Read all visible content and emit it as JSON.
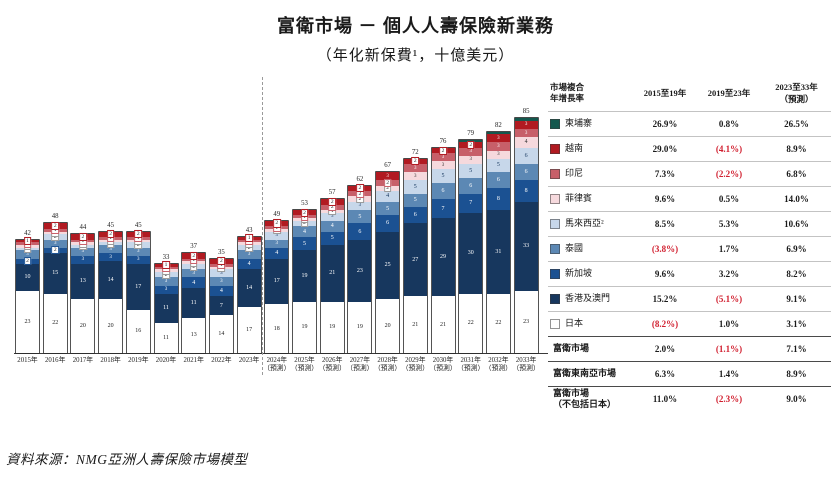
{
  "header": {
    "title": "富衛市場 － 個人人壽保險新業務",
    "subtitle": "（年化新保費¹，十億美元）"
  },
  "footnote": "資料來源：NMG亞洲人壽保險市場模型",
  "chart_data": {
    "type": "bar",
    "subtype": "stacked",
    "title": "富衛市場 － 個人人壽保險新業務",
    "ylabel": "年化新保費（十億美元）",
    "x": [
      "2015年",
      "2016年",
      "2017年",
      "2018年",
      "2019年",
      "2020年",
      "2021年",
      "2022年",
      "2023年",
      "2024年",
      "2025年",
      "2026年",
      "2027年",
      "2028年",
      "2029年",
      "2030年",
      "2031年",
      "2032年",
      "2033年"
    ],
    "forecast_from_index": 9,
    "forecast_suffix": "（預測）",
    "totals": [
      42,
      48,
      44,
      45,
      45,
      33,
      37,
      35,
      43,
      49,
      53,
      57,
      62,
      67,
      72,
      76,
      79,
      82,
      85
    ],
    "series": [
      {
        "name": "日本",
        "color": "#ffffff",
        "text": "#222222",
        "values": [
          23,
          22,
          20,
          20,
          16,
          11,
          13,
          14,
          17,
          18,
          19,
          19,
          19,
          20,
          21,
          21,
          22,
          22,
          23
        ]
      },
      {
        "name": "香港及澳門",
        "color": "#17375e",
        "text": "#ffffff",
        "values": [
          10,
          15,
          13,
          14,
          17,
          11,
          11,
          7,
          14,
          17,
          19,
          21,
          23,
          25,
          27,
          29,
          30,
          31,
          33
        ]
      },
      {
        "name": "新加坡",
        "color": "#1b5192",
        "text": "#ffffff",
        "values": [
          2,
          2,
          3,
          3,
          3,
          3,
          4,
          4,
          4,
          4,
          5,
          5,
          6,
          6,
          6,
          7,
          7,
          8,
          8
        ]
      },
      {
        "name": "泰國",
        "color": "#5c88b4",
        "text": "#ffffff",
        "values": [
          3,
          3,
          3,
          3,
          3,
          3,
          3,
          3,
          3,
          3,
          4,
          4,
          5,
          5,
          5,
          6,
          6,
          6,
          6
        ]
      },
      {
        "name": "馬來西亞",
        "color": "#c7d7ea",
        "text": "#17375e",
        "values": [
          1,
          2,
          1,
          1,
          2,
          2,
          2,
          3,
          2,
          3,
          2,
          3,
          3,
          4,
          5,
          5,
          5,
          5,
          6
        ]
      },
      {
        "name": "菲律賓",
        "color": "#f6d9dd",
        "text": "#333333",
        "values": [
          1,
          1,
          1,
          1,
          1,
          1,
          1,
          1,
          1,
          1,
          1,
          1,
          2,
          2,
          3,
          3,
          3,
          3,
          4
        ]
      },
      {
        "name": "印尼",
        "color": "#c75f69",
        "text": "#ffffff",
        "values": [
          1,
          1,
          1,
          1,
          1,
          1,
          1,
          1,
          1,
          1,
          1,
          2,
          2,
          2,
          3,
          3,
          3,
          3,
          3
        ]
      },
      {
        "name": "越南",
        "color": "#b11a21",
        "text": "#ffffff",
        "values": [
          1,
          2,
          2,
          2,
          2,
          1,
          2,
          2,
          1,
          2,
          2,
          2,
          2,
          3,
          2,
          2,
          2,
          3,
          3
        ]
      },
      {
        "name": "柬埔寨",
        "color": "#14584e",
        "text": "#ffffff",
        "nolabel": true,
        "values": [
          0,
          0,
          0,
          0,
          0,
          0,
          0,
          0,
          0,
          0,
          0,
          0,
          0,
          0,
          0,
          0,
          1,
          1,
          1
        ]
      }
    ]
  },
  "table": {
    "negative_color": "#d11f2f",
    "headers": [
      "市場複合\n年增長率",
      "2015至19年",
      "2019至23年",
      "2023至33年\n（預測）"
    ],
    "rows": [
      {
        "swatch": "#14584e",
        "label": "柬埔寨",
        "values": [
          "26.9%",
          "0.8%",
          "26.5%"
        ],
        "bold": false
      },
      {
        "swatch": "#b11a21",
        "label": "越南",
        "values": [
          "29.0%",
          "(4.1%)",
          "8.9%"
        ],
        "bold": false
      },
      {
        "swatch": "#c75f69",
        "label": "印尼",
        "values": [
          "7.3%",
          "(2.2%)",
          "6.8%"
        ],
        "bold": false
      },
      {
        "swatch": "#f6d9dd",
        "label": "菲律賓",
        "values": [
          "9.6%",
          "0.5%",
          "14.0%"
        ],
        "bold": false
      },
      {
        "swatch": "#c7d7ea",
        "label": "馬來西亞²",
        "values": [
          "8.5%",
          "5.3%",
          "10.6%"
        ],
        "bold": false
      },
      {
        "swatch": "#5c88b4",
        "label": "泰國",
        "values": [
          "(3.8%)",
          "1.7%",
          "6.9%"
        ],
        "bold": false
      },
      {
        "swatch": "#1b5192",
        "label": "新加坡",
        "values": [
          "9.6%",
          "3.2%",
          "8.2%"
        ],
        "bold": false
      },
      {
        "swatch": "#17375e",
        "label": "香港及澳門",
        "values": [
          "15.2%",
          "(5.1%)",
          "9.1%"
        ],
        "bold": false
      },
      {
        "swatch": "#ffffff",
        "label": "日本",
        "values": [
          "(8.2%)",
          "1.0%",
          "3.1%"
        ],
        "bold": false
      },
      {
        "swatch": null,
        "label": "富衛市場",
        "values": [
          "2.0%",
          "(1.1%)",
          "7.1%"
        ],
        "bold": true
      },
      {
        "swatch": null,
        "label": "富衛東南亞市場",
        "values": [
          "6.3%",
          "1.4%",
          "8.9%"
        ],
        "bold": true
      },
      {
        "swatch": null,
        "label": "富衛市場\n（不包括日本）",
        "values": [
          "11.0%",
          "(2.3%)",
          "9.0%"
        ],
        "bold": true
      }
    ]
  }
}
